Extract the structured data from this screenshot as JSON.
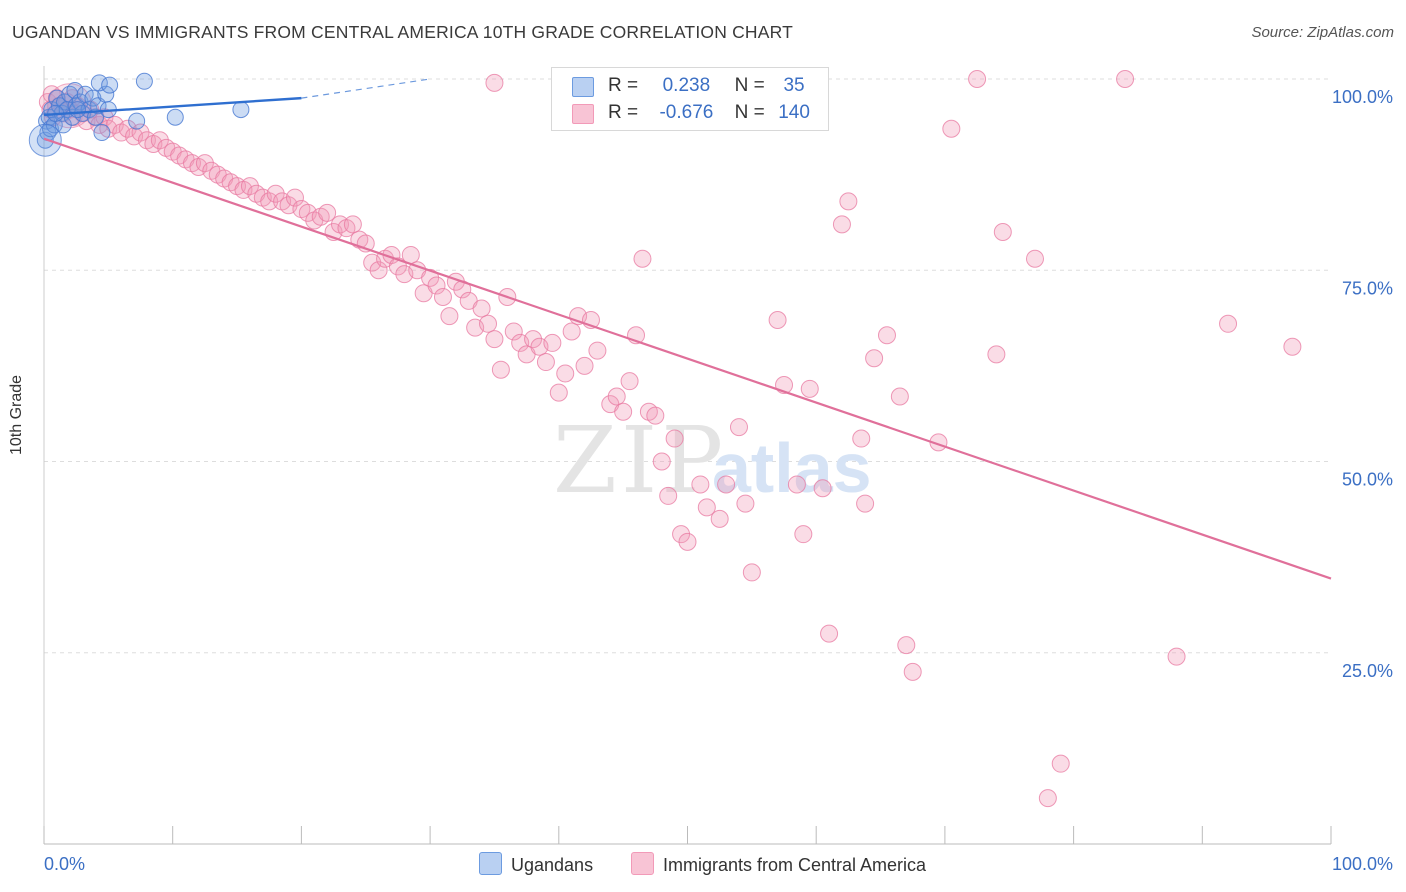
{
  "title": "UGANDAN VS IMMIGRANTS FROM CENTRAL AMERICA 10TH GRADE CORRELATION CHART",
  "source": "Source: ZipAtlas.com",
  "colors": {
    "blue": "#6c9be0",
    "blue_line": "#2f6fd0",
    "pink": "#f29ab8",
    "pink_line": "#e0709a",
    "grid": "#dddddd",
    "axis_label": "#3b6fc4"
  },
  "watermark": {
    "zip": "ZIP",
    "atlas": "atlas"
  },
  "legend": {
    "rows": [
      {
        "r_label": "R =",
        "r_value": "0.238",
        "n_label": "N =",
        "n_value": "35"
      },
      {
        "r_label": "R =",
        "r_value": "-0.676",
        "n_label": "N =",
        "n_value": "140"
      }
    ]
  },
  "chart_data": {
    "type": "scatter",
    "title": "UGANDAN VS IMMIGRANTS FROM CENTRAL AMERICA 10TH GRADE CORRELATION CHART",
    "xlabel": "",
    "ylabel": "10th Grade",
    "xlim": [
      0,
      100
    ],
    "ylim": [
      0,
      100
    ],
    "x_tick_labels": [
      "0.0%",
      "100.0%"
    ],
    "y_tick_labels": [
      "100.0%",
      "75.0%",
      "50.0%",
      "25.0%"
    ],
    "y_tick_values": [
      100,
      75,
      50,
      25
    ],
    "grid": true,
    "legend_position": "bottom",
    "series": [
      {
        "name": "Ugandans",
        "color": "#6c9be0",
        "R": 0.238,
        "N": 35,
        "trend": {
          "x": [
            0,
            20
          ],
          "y": [
            95.3,
            97.5
          ],
          "dashed_to": [
            30,
            100
          ]
        },
        "points": [
          [
            0.1,
            92.0
          ],
          [
            0.2,
            94.5
          ],
          [
            0.3,
            93.0
          ],
          [
            0.4,
            95.0
          ],
          [
            0.5,
            93.5
          ],
          [
            0.6,
            96.0
          ],
          [
            0.8,
            94.0
          ],
          [
            1.0,
            97.5
          ],
          [
            1.2,
            96.5
          ],
          [
            1.4,
            95.5
          ],
          [
            1.5,
            94.0
          ],
          [
            1.6,
            97.0
          ],
          [
            1.8,
            96.0
          ],
          [
            2.0,
            98.0
          ],
          [
            2.2,
            95.0
          ],
          [
            2.4,
            98.5
          ],
          [
            2.5,
            96.5
          ],
          [
            2.8,
            97.0
          ],
          [
            3.0,
            95.5
          ],
          [
            3.2,
            98.0
          ],
          [
            3.5,
            96.0
          ],
          [
            3.8,
            97.5
          ],
          [
            4.0,
            95.0
          ],
          [
            4.2,
            96.5
          ],
          [
            4.5,
            93.0
          ],
          [
            4.8,
            98.0
          ],
          [
            5.0,
            96.0
          ],
          [
            0.9,
            95.5
          ],
          [
            2.6,
            96.0
          ],
          [
            4.3,
            99.5
          ],
          [
            5.1,
            99.2
          ],
          [
            7.2,
            94.5
          ],
          [
            7.8,
            99.7
          ],
          [
            10.2,
            95.0
          ],
          [
            15.3,
            96.0
          ]
        ]
      },
      {
        "name": "Immigrants from Central America",
        "color": "#f29ab8",
        "R": -0.676,
        "N": 140,
        "trend": {
          "x": [
            0,
            100
          ],
          "y": [
            92.2,
            34.7
          ]
        },
        "points": [
          [
            0.3,
            97.0
          ],
          [
            0.5,
            96.0
          ],
          [
            0.7,
            95.0
          ],
          [
            1.0,
            97.5
          ],
          [
            1.2,
            96.5
          ],
          [
            1.5,
            95.5
          ],
          [
            1.8,
            97.0
          ],
          [
            2.0,
            96.0
          ],
          [
            2.3,
            95.0
          ],
          [
            2.6,
            96.5
          ],
          [
            3.0,
            95.5
          ],
          [
            3.3,
            94.5
          ],
          [
            3.6,
            96.0
          ],
          [
            4.0,
            95.0
          ],
          [
            4.3,
            94.0
          ],
          [
            4.7,
            95.0
          ],
          [
            5.0,
            93.5
          ],
          [
            5.5,
            94.0
          ],
          [
            6.0,
            93.0
          ],
          [
            6.5,
            93.5
          ],
          [
            7.0,
            92.5
          ],
          [
            7.5,
            93.0
          ],
          [
            8.0,
            92.0
          ],
          [
            8.5,
            91.5
          ],
          [
            9.0,
            92.0
          ],
          [
            9.5,
            91.0
          ],
          [
            10.0,
            90.5
          ],
          [
            10.5,
            90.0
          ],
          [
            11.0,
            89.5
          ],
          [
            11.5,
            89.0
          ],
          [
            12.0,
            88.5
          ],
          [
            12.5,
            89.0
          ],
          [
            13.0,
            88.0
          ],
          [
            13.5,
            87.5
          ],
          [
            14.0,
            87.0
          ],
          [
            14.5,
            86.5
          ],
          [
            15.0,
            86.0
          ],
          [
            15.5,
            85.5
          ],
          [
            16.0,
            86.0
          ],
          [
            16.5,
            85.0
          ],
          [
            17.0,
            84.5
          ],
          [
            17.5,
            84.0
          ],
          [
            18.0,
            85.0
          ],
          [
            18.5,
            84.0
          ],
          [
            19.0,
            83.5
          ],
          [
            19.5,
            84.5
          ],
          [
            20.0,
            83.0
          ],
          [
            20.5,
            82.5
          ],
          [
            21.0,
            81.5
          ],
          [
            21.5,
            82.0
          ],
          [
            22.0,
            82.5
          ],
          [
            22.5,
            80.0
          ],
          [
            23.0,
            81.0
          ],
          [
            23.5,
            80.5
          ],
          [
            24.0,
            81.0
          ],
          [
            24.5,
            79.0
          ],
          [
            25.0,
            78.5
          ],
          [
            25.5,
            76.0
          ],
          [
            26.0,
            75.0
          ],
          [
            26.5,
            76.5
          ],
          [
            27.0,
            77.0
          ],
          [
            27.5,
            75.5
          ],
          [
            28.0,
            74.5
          ],
          [
            28.5,
            77.0
          ],
          [
            29.0,
            75.0
          ],
          [
            29.5,
            72.0
          ],
          [
            30.0,
            74.0
          ],
          [
            30.5,
            73.0
          ],
          [
            31.0,
            71.5
          ],
          [
            31.5,
            69.0
          ],
          [
            32.0,
            73.5
          ],
          [
            32.5,
            72.5
          ],
          [
            33.0,
            71.0
          ],
          [
            33.5,
            67.5
          ],
          [
            34.0,
            70.0
          ],
          [
            34.5,
            68.0
          ],
          [
            35.0,
            66.0
          ],
          [
            35.5,
            62.0
          ],
          [
            36.0,
            71.5
          ],
          [
            36.5,
            67.0
          ],
          [
            37.0,
            65.5
          ],
          [
            37.5,
            64.0
          ],
          [
            38.0,
            66.0
          ],
          [
            38.5,
            65.0
          ],
          [
            39.0,
            63.0
          ],
          [
            39.5,
            65.5
          ],
          [
            40.0,
            59.0
          ],
          [
            40.5,
            61.5
          ],
          [
            41.0,
            67.0
          ],
          [
            41.5,
            69.0
          ],
          [
            42.0,
            62.5
          ],
          [
            42.5,
            68.5
          ],
          [
            43.0,
            64.5
          ],
          [
            44.0,
            57.5
          ],
          [
            44.5,
            58.5
          ],
          [
            45.0,
            56.5
          ],
          [
            45.5,
            60.5
          ],
          [
            46.0,
            66.5
          ],
          [
            46.5,
            76.5
          ],
          [
            47.0,
            56.5
          ],
          [
            47.5,
            56.0
          ],
          [
            48.0,
            50.0
          ],
          [
            48.5,
            45.5
          ],
          [
            49.0,
            53.0
          ],
          [
            49.5,
            40.5
          ],
          [
            50.0,
            39.5
          ],
          [
            51.0,
            47.0
          ],
          [
            51.5,
            44.0
          ],
          [
            52.5,
            42.5
          ],
          [
            53.0,
            47.0
          ],
          [
            54.0,
            54.5
          ],
          [
            54.5,
            44.5
          ],
          [
            55.0,
            35.5
          ],
          [
            57.0,
            68.5
          ],
          [
            57.5,
            60.0
          ],
          [
            58.5,
            47.0
          ],
          [
            59.0,
            40.5
          ],
          [
            59.5,
            59.5
          ],
          [
            60.5,
            46.5
          ],
          [
            61.0,
            27.5
          ],
          [
            62.0,
            81.0
          ],
          [
            62.5,
            84.0
          ],
          [
            63.5,
            53.0
          ],
          [
            63.8,
            44.5
          ],
          [
            64.5,
            63.5
          ],
          [
            65.5,
            66.5
          ],
          [
            66.5,
            58.5
          ],
          [
            67.0,
            26.0
          ],
          [
            67.5,
            22.5
          ],
          [
            69.5,
            52.5
          ],
          [
            70.5,
            93.5
          ],
          [
            72.5,
            100.0
          ],
          [
            74.0,
            64.0
          ],
          [
            74.5,
            80.0
          ],
          [
            77.0,
            76.5
          ],
          [
            78.0,
            6.0
          ],
          [
            79.0,
            10.5
          ],
          [
            84.0,
            100.0
          ],
          [
            88.0,
            24.5
          ],
          [
            92.0,
            68.0
          ],
          [
            97.0,
            65.0
          ],
          [
            0.6,
            98.0
          ],
          [
            2.2,
            97.5
          ],
          [
            35.0,
            99.5
          ]
        ]
      }
    ]
  }
}
